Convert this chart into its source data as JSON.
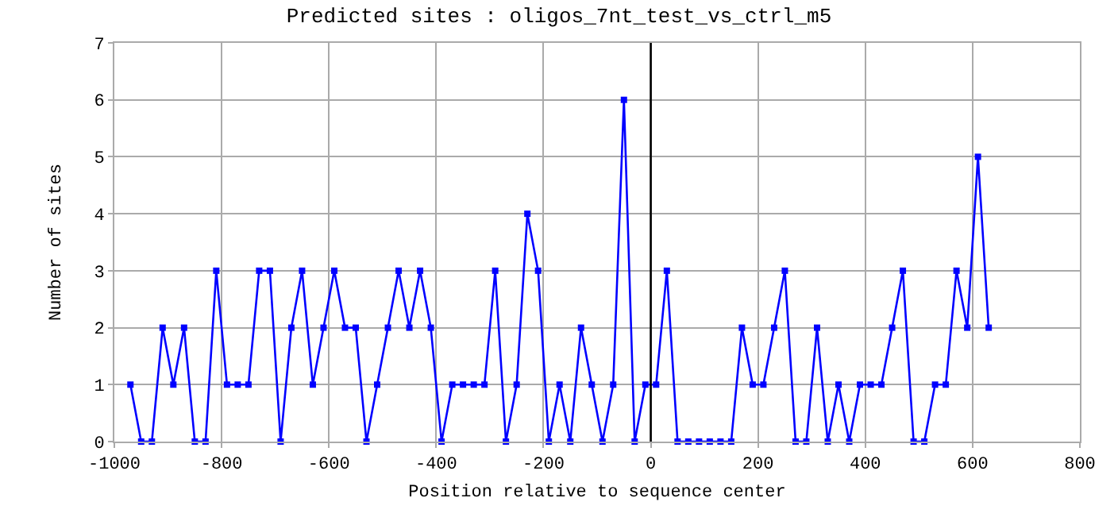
{
  "chart_data": {
    "type": "line",
    "title": "Predicted sites : oligos_7nt_test_vs_ctrl_m5",
    "xlabel": "Position relative to sequence center",
    "ylabel": "Number of sites",
    "x": [
      -970,
      -950,
      -930,
      -910,
      -890,
      -870,
      -850,
      -830,
      -810,
      -790,
      -770,
      -750,
      -730,
      -710,
      -690,
      -670,
      -650,
      -630,
      -610,
      -590,
      -570,
      -550,
      -530,
      -510,
      -490,
      -470,
      -450,
      -430,
      -410,
      -390,
      -370,
      -350,
      -330,
      -310,
      -290,
      -270,
      -250,
      -230,
      -210,
      -190,
      -170,
      -150,
      -130,
      -110,
      -90,
      -70,
      -50,
      -30,
      -10,
      10,
      30,
      50,
      70,
      90,
      110,
      130,
      150,
      170,
      190,
      210,
      230,
      250,
      270,
      290,
      310,
      330,
      350,
      370,
      390,
      410,
      430,
      450,
      470,
      490,
      510,
      530,
      550,
      570,
      590,
      610,
      630
    ],
    "series": [
      {
        "color": "#0000ff",
        "values": [
          1,
          0,
          0,
          2,
          1,
          2,
          0,
          0,
          3,
          1,
          1,
          1,
          3,
          3,
          0,
          2,
          3,
          1,
          2,
          3,
          2,
          2,
          0,
          1,
          2,
          3,
          2,
          3,
          2,
          0,
          1,
          1,
          1,
          1,
          3,
          0,
          1,
          4,
          3,
          0,
          1,
          0,
          2,
          1,
          0,
          1,
          6,
          0,
          1,
          1,
          3,
          0,
          0,
          0,
          0,
          0,
          0,
          2,
          1,
          1,
          2,
          3,
          0,
          0,
          2,
          0,
          1,
          0,
          1,
          1,
          1,
          2,
          3,
          0,
          0,
          1,
          1,
          3,
          2,
          5,
          2
        ]
      }
    ],
    "xlim": [
      -1000,
      800
    ],
    "xticks": [
      -1000,
      -800,
      -600,
      -400,
      -200,
      0,
      200,
      400,
      600,
      800
    ],
    "ylim": [
      0,
      7
    ],
    "yticks": [
      0,
      1,
      2,
      3,
      4,
      5,
      6,
      7
    ],
    "ref_lines": [
      {
        "axis": "x",
        "value": 0,
        "color": "#000000"
      }
    ],
    "grid": true,
    "marker": "square",
    "line_style": "solid"
  }
}
